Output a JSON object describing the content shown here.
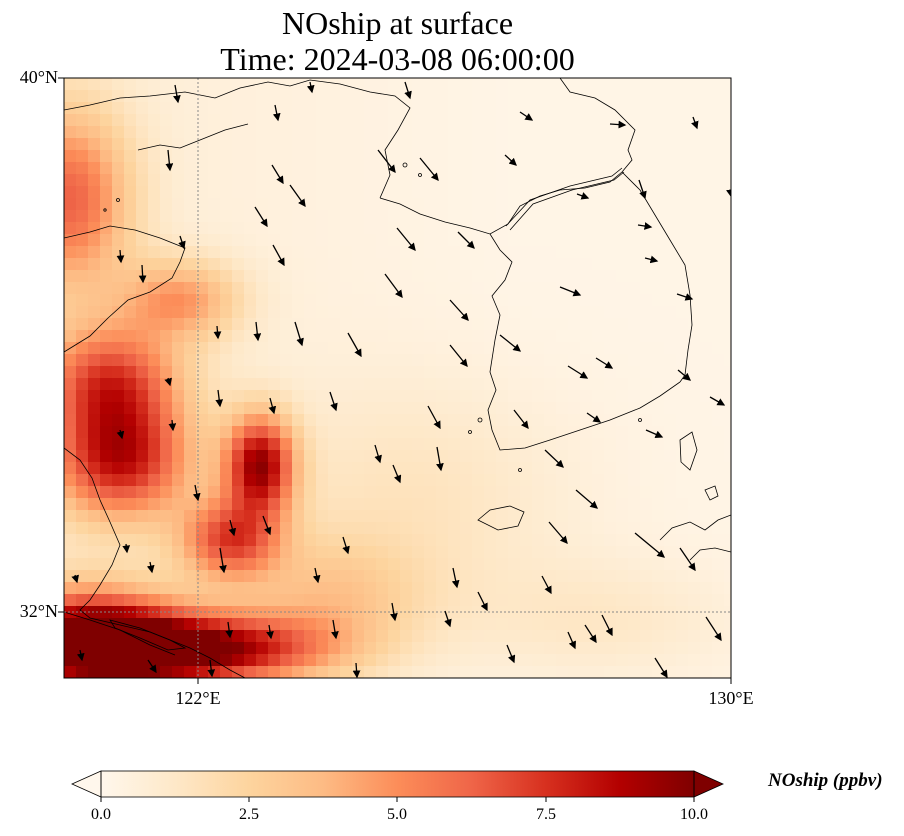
{
  "title": {
    "line1": "NOship at surface",
    "line2": "Time: 2024-03-08 06:00:00"
  },
  "map": {
    "lat_range": [
      31.0,
      40.0
    ],
    "lon_range": [
      120.0,
      130.0
    ],
    "gridline_lat": 32,
    "gridline_lon": 122,
    "lat_labels": [
      "40°N",
      "32°N"
    ],
    "lon_labels": [
      "122°E",
      "130°E"
    ],
    "field": "NOship",
    "colormap": "OrRd",
    "colormap_stops": [
      "#fff7ec",
      "#fee8c8",
      "#fdd49e",
      "#fdbb84",
      "#fc8d59",
      "#ef6548",
      "#d7301f",
      "#b30000",
      "#7f0000"
    ],
    "coastline_color": "#000000",
    "gridline_color": "#888888"
  },
  "colorbar": {
    "label": "NOship (ppbv)",
    "min": 0.0,
    "max": 10.0,
    "extend": "both",
    "ticks": [
      "0.0",
      "2.5",
      "5.0",
      "7.5",
      "10.0"
    ]
  },
  "wind_vectors": "black arrows, mostly pointing south-east"
}
